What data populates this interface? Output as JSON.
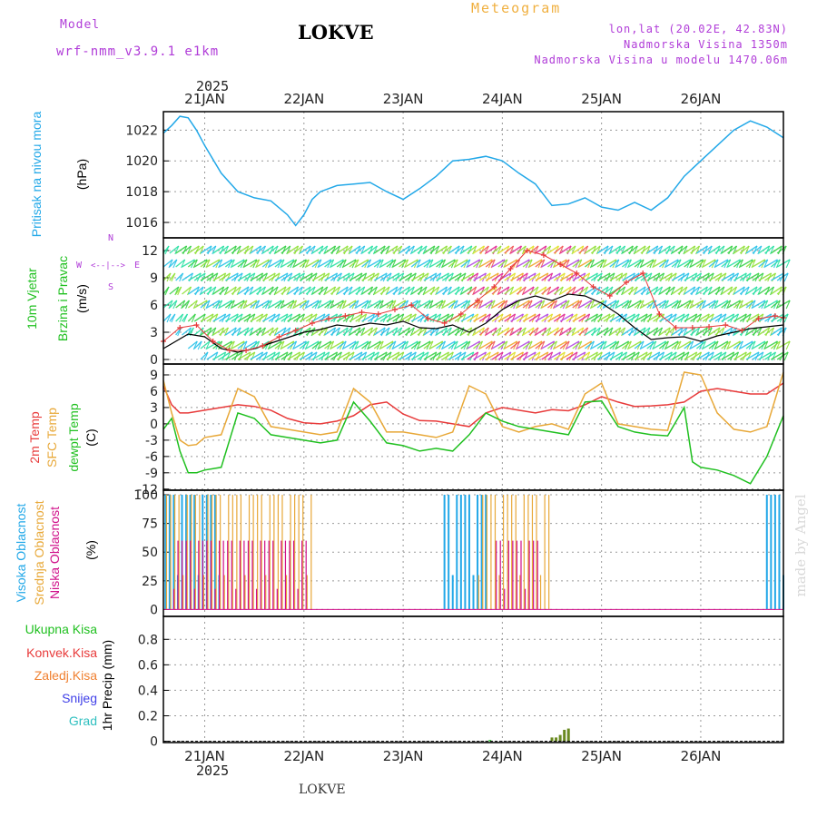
{
  "header": {
    "model_label": "Model",
    "model_name": "wrf-nmm_v3.9.1 e1km",
    "station": "LOKVE",
    "product": "Meteogram",
    "coords": "lon,lat (20.02E, 42.83N)",
    "elevation": "Nadmorska Visina 1350m",
    "model_elevation": "Nadmorska Visina u modelu 1470.06m"
  },
  "footer": {
    "station": "LOKVE",
    "credit": "made by Angel"
  },
  "colors": {
    "pressure": "#22a8e8",
    "temp2m": "#e83a3a",
    "sfc_temp": "#e8a838",
    "dewpt": "#20c020",
    "high_cloud": "#22a8e8",
    "mid_cloud": "#e8a838",
    "low_cloud": "#d0108a",
    "precip_total": "#20c020",
    "precip_conv": "#e83a3a",
    "precip_frz": "#f08030",
    "snow": "#4040e8",
    "hail": "#30c0c0",
    "gust": "#e83a3a",
    "speed": "#000000"
  },
  "chart_data": [
    {
      "type": "line",
      "panel": "pressure",
      "legend": [
        "Pritisak na nivou mora"
      ],
      "ylabel": "(hPa)",
      "yticks": [
        1016,
        1018,
        1020,
        1022
      ],
      "ylim": [
        1015,
        1023.2
      ],
      "x_range_hours": [
        -10,
        140
      ],
      "date_labels": [
        "21JAN",
        "22JAN",
        "23JAN",
        "24JAN",
        "25JAN",
        "26JAN"
      ],
      "year": "2025",
      "series": [
        {
          "x": [
            -10,
            -8,
            -6,
            -4,
            -2,
            0,
            4,
            8,
            12,
            16,
            20,
            22,
            24,
            26,
            28,
            32,
            36,
            40,
            44,
            48,
            52,
            56,
            60,
            64,
            68,
            72,
            76,
            80,
            84,
            88,
            92,
            96,
            100,
            104,
            108,
            112,
            116,
            120,
            124,
            128,
            132,
            136,
            140
          ],
          "values": [
            1021.8,
            1022.3,
            1022.9,
            1022.8,
            1022.0,
            1021.0,
            1019.2,
            1018.0,
            1017.6,
            1017.4,
            1016.5,
            1015.8,
            1016.5,
            1017.5,
            1018.0,
            1018.4,
            1018.5,
            1018.6,
            1018.0,
            1017.5,
            1018.2,
            1019.0,
            1020.0,
            1020.1,
            1020.3,
            1020.0,
            1019.2,
            1018.5,
            1017.1,
            1017.2,
            1017.6,
            1017.0,
            1016.8,
            1017.3,
            1016.8,
            1017.6,
            1019.0,
            1020.0,
            1021.0,
            1022.0,
            1022.6,
            1022.2,
            1021.5
          ]
        }
      ]
    },
    {
      "type": "line",
      "panel": "wind",
      "legend": [
        "10m Vjetar",
        "Brzina i Pravac"
      ],
      "ylabel": "(m/s)",
      "compass": [
        "N",
        "S",
        "W",
        "E"
      ],
      "yticks": [
        0,
        3,
        6,
        9,
        12
      ],
      "ylim": [
        -0.5,
        13.4
      ],
      "series": [
        {
          "name": "speed",
          "x": [
            -10,
            -4,
            0,
            4,
            8,
            12,
            16,
            20,
            24,
            28,
            32,
            36,
            40,
            44,
            48,
            52,
            56,
            60,
            64,
            68,
            72,
            76,
            80,
            84,
            88,
            92,
            96,
            100,
            104,
            108,
            112,
            116,
            120,
            124,
            128,
            132,
            136,
            140
          ],
          "values": [
            1.2,
            2.8,
            2.5,
            1.2,
            0.8,
            1.2,
            1.8,
            2.4,
            3.0,
            3.3,
            3.8,
            3.6,
            4.0,
            3.8,
            4.2,
            3.5,
            3.4,
            3.8,
            3.0,
            4.0,
            5.5,
            6.5,
            7.0,
            6.5,
            7.2,
            7.0,
            6.2,
            5.0,
            3.5,
            2.2,
            2.4,
            2.5,
            2.0,
            2.6,
            3.0,
            3.4,
            3.6,
            3.8
          ]
        },
        {
          "name": "gust",
          "x": [
            -10,
            -6,
            -2,
            2,
            6,
            10,
            14,
            18,
            22,
            26,
            30,
            34,
            38,
            42,
            46,
            50,
            54,
            58,
            62,
            66,
            70,
            74,
            78,
            82,
            86,
            90,
            94,
            98,
            102,
            106,
            110,
            114,
            118,
            122,
            126,
            130,
            134,
            138,
            140
          ],
          "values": [
            2.0,
            3.5,
            3.8,
            2.0,
            1.0,
            1.0,
            1.5,
            2.5,
            3.2,
            4.0,
            4.5,
            4.8,
            5.2,
            5.0,
            5.5,
            6.0,
            4.5,
            4.0,
            5.0,
            6.5,
            8.0,
            10.0,
            12.0,
            11.5,
            10.5,
            9.5,
            8.0,
            7.0,
            8.5,
            9.5,
            5.0,
            3.5,
            3.5,
            3.6,
            3.8,
            3.2,
            4.5,
            4.8,
            4.6
          ]
        }
      ]
    },
    {
      "type": "line",
      "panel": "temperature",
      "legend": [
        "2m Temp",
        "SFC Temp",
        "dewpt Temp"
      ],
      "ylabel": "(C)",
      "yticks": [
        -12,
        -9,
        -6,
        -3,
        0,
        3,
        6,
        9
      ],
      "ylim": [
        -12.2,
        11
      ],
      "series": [
        {
          "name": "2m Temp",
          "x": [
            -10,
            -8,
            -6,
            -4,
            0,
            4,
            8,
            12,
            16,
            20,
            24,
            28,
            32,
            36,
            40,
            44,
            48,
            52,
            56,
            60,
            64,
            68,
            72,
            76,
            80,
            84,
            88,
            92,
            96,
            100,
            104,
            108,
            112,
            116,
            120,
            124,
            128,
            132,
            136,
            140
          ],
          "values": [
            7.0,
            3.5,
            2.0,
            2.0,
            2.5,
            3.0,
            3.5,
            3.2,
            2.5,
            1.0,
            0.2,
            0.0,
            0.5,
            1.5,
            3.5,
            4.0,
            1.8,
            0.6,
            0.5,
            0.0,
            -0.5,
            2.0,
            3.0,
            2.5,
            2.0,
            2.6,
            2.4,
            3.5,
            5.0,
            4.0,
            3.2,
            3.3,
            3.5,
            4.0,
            6.0,
            6.5,
            6.0,
            5.5,
            5.5,
            7.5
          ]
        },
        {
          "name": "SFC Temp",
          "x": [
            -10,
            -8,
            -6,
            -4,
            -2,
            0,
            4,
            8,
            12,
            16,
            20,
            24,
            28,
            32,
            36,
            40,
            44,
            48,
            52,
            56,
            60,
            64,
            68,
            72,
            76,
            80,
            84,
            88,
            92,
            96,
            100,
            104,
            108,
            112,
            116,
            120,
            124,
            128,
            132,
            136,
            140
          ],
          "values": [
            8.0,
            2.0,
            -3.0,
            -4.0,
            -3.8,
            -2.5,
            -2.0,
            6.5,
            5.0,
            -0.5,
            -1.0,
            -1.5,
            -2.0,
            -1.5,
            6.5,
            4.0,
            -1.5,
            -1.5,
            -2.0,
            -2.5,
            -1.5,
            7.0,
            5.5,
            -0.5,
            -1.5,
            -0.5,
            0.0,
            -1.0,
            5.5,
            7.5,
            0.0,
            -0.5,
            -1.0,
            -1.2,
            9.5,
            9.0,
            2.0,
            -1.0,
            -1.5,
            -0.5,
            9.5
          ]
        },
        {
          "name": "dewpt Temp",
          "x": [
            -10,
            -8,
            -6,
            -4,
            -2,
            0,
            4,
            8,
            12,
            16,
            20,
            24,
            28,
            32,
            36,
            40,
            44,
            48,
            52,
            56,
            60,
            64,
            68,
            72,
            76,
            80,
            84,
            88,
            92,
            96,
            100,
            104,
            108,
            112,
            116,
            118,
            120,
            124,
            128,
            132,
            136,
            140
          ],
          "values": [
            -1.0,
            1.0,
            -5.0,
            -9.0,
            -9.0,
            -8.5,
            -8.0,
            2.0,
            1.0,
            -2.0,
            -2.5,
            -3.0,
            -3.5,
            -3.0,
            4.0,
            0.5,
            -3.5,
            -4.0,
            -5.0,
            -4.5,
            -5.0,
            -2.0,
            2.0,
            0.5,
            -0.5,
            -1.0,
            -1.5,
            -2.0,
            4.0,
            4.2,
            -0.5,
            -1.5,
            -2.0,
            -2.2,
            3.0,
            -7.0,
            -8.0,
            -8.5,
            -9.5,
            -11.0,
            -6.0,
            1.5
          ]
        }
      ]
    },
    {
      "type": "bar",
      "panel": "cloud",
      "legend": [
        "Visoka Oblacnost",
        "Srednja Oblacnost",
        "Niska Oblacnost"
      ],
      "ylabel": "(%)",
      "yticks": [
        0,
        25,
        50,
        75,
        100
      ],
      "ylim": [
        -6,
        104
      ],
      "segments": [
        {
          "name": "Visoka Oblacnost",
          "spans": [
            [
              -9.5,
              4
            ],
            [
              58,
              68
            ],
            [
              136,
              140
            ]
          ],
          "typical": 100
        },
        {
          "name": "Srednja Oblacnost",
          "spans": [
            [
              -9.5,
              26
            ],
            [
              66,
              83
            ]
          ],
          "typical": 100
        },
        {
          "name": "Niska Oblacnost",
          "spans": [
            [
              -8,
              24
            ],
            [
              70,
              80
            ]
          ],
          "typical": 60
        }
      ]
    },
    {
      "type": "bar",
      "panel": "precip",
      "legend": [
        "Ukupna Kisa",
        "Konvek.Kisa",
        "Zaledj.Kisa",
        "Snijeg",
        "Grad"
      ],
      "ylabel": "1hr Precip (mm)",
      "yticks": [
        0,
        0.2,
        0.4,
        0.6,
        0.8
      ],
      "ylim": [
        -0.01,
        0.98
      ],
      "series": [
        {
          "name": "Ukupna Kisa",
          "x": [
            69,
            84,
            85,
            86,
            87,
            88
          ],
          "values": [
            0.01,
            0.03,
            0.03,
            0.05,
            0.09,
            0.1
          ]
        }
      ]
    }
  ]
}
